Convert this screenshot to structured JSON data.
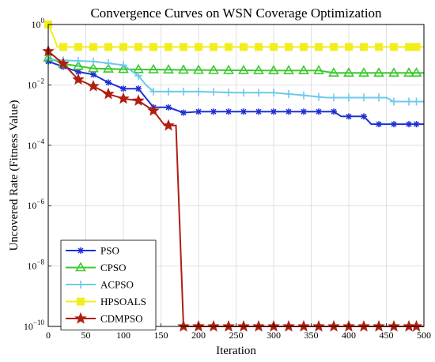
{
  "chart_data": {
    "type": "line",
    "title": "Convergence Curves on WSN Coverage Optimization",
    "xlabel": "Iteration",
    "ylabel": "Uncovered Rate (Fitness Value)",
    "xlim": [
      0,
      500
    ],
    "ylim": [
      1e-10,
      1
    ],
    "yscale": "log",
    "grid": true,
    "legend_position": "bottom-left",
    "x_ticks": [
      "0",
      "50",
      "100",
      "150",
      "200",
      "250",
      "300",
      "350",
      "400",
      "450",
      "500"
    ],
    "y_ticks": [
      {
        "value": 1e-10,
        "base": "10",
        "exp": "−10"
      },
      {
        "value": 1e-08,
        "base": "10",
        "exp": "−8"
      },
      {
        "value": 1e-06,
        "base": "10",
        "exp": "−6"
      },
      {
        "value": 0.0001,
        "base": "10",
        "exp": "−4"
      },
      {
        "value": 0.01,
        "base": "10",
        "exp": "−2"
      },
      {
        "value": 1,
        "base": "10",
        "exp": "0"
      }
    ],
    "series": [
      {
        "name": "PSO",
        "color": "#1f2fd6",
        "marker": "asterisk",
        "points": [
          [
            0,
            0.06
          ],
          [
            20,
            0.04
          ],
          [
            40,
            0.027
          ],
          [
            60,
            0.022
          ],
          [
            80,
            0.012
          ],
          [
            100,
            0.0075
          ],
          [
            120,
            0.0075
          ],
          [
            140,
            0.0018
          ],
          [
            160,
            0.0018
          ],
          [
            180,
            0.0012
          ],
          [
            200,
            0.0013
          ],
          [
            250,
            0.0013
          ],
          [
            300,
            0.0013
          ],
          [
            350,
            0.0013
          ],
          [
            380,
            0.0013
          ],
          [
            390,
            0.0009
          ],
          [
            420,
            0.0009
          ],
          [
            430,
            0.0005
          ],
          [
            500,
            0.0005
          ]
        ],
        "marker_x": [
          0,
          20,
          40,
          60,
          80,
          100,
          120,
          140,
          160,
          180,
          200,
          220,
          240,
          260,
          280,
          300,
          320,
          340,
          360,
          380,
          400,
          420,
          440,
          460,
          480,
          490
        ]
      },
      {
        "name": "CPSO",
        "color": "#3cc92e",
        "marker": "triangle",
        "points": [
          [
            0,
            0.08
          ],
          [
            20,
            0.05
          ],
          [
            40,
            0.042
          ],
          [
            60,
            0.035
          ],
          [
            100,
            0.033
          ],
          [
            200,
            0.031
          ],
          [
            300,
            0.03
          ],
          [
            360,
            0.03
          ],
          [
            380,
            0.025
          ],
          [
            500,
            0.025
          ]
        ],
        "marker_x": [
          0,
          20,
          40,
          60,
          80,
          100,
          120,
          140,
          160,
          180,
          200,
          220,
          240,
          260,
          280,
          300,
          320,
          340,
          360,
          380,
          400,
          420,
          440,
          460,
          480,
          490
        ]
      },
      {
        "name": "ACPSO",
        "color": "#6ec8ee",
        "marker": "plus",
        "points": [
          [
            0,
            0.07
          ],
          [
            20,
            0.065
          ],
          [
            60,
            0.06
          ],
          [
            100,
            0.045
          ],
          [
            120,
            0.02
          ],
          [
            130,
            0.01
          ],
          [
            140,
            0.006
          ],
          [
            200,
            0.006
          ],
          [
            250,
            0.0055
          ],
          [
            300,
            0.0055
          ],
          [
            340,
            0.0045
          ],
          [
            370,
            0.0038
          ],
          [
            450,
            0.0038
          ],
          [
            460,
            0.0028
          ],
          [
            500,
            0.0028
          ]
        ],
        "marker_x": [
          0,
          20,
          40,
          60,
          80,
          100,
          120,
          140,
          160,
          180,
          200,
          220,
          240,
          260,
          280,
          300,
          320,
          340,
          360,
          380,
          400,
          420,
          440,
          460,
          480,
          490
        ]
      },
      {
        "name": "HPSOALS",
        "color": "#f2ee1c",
        "marker": "square",
        "points": [
          [
            0,
            1
          ],
          [
            8,
            0.35
          ],
          [
            12,
            0.18
          ],
          [
            500,
            0.18
          ]
        ],
        "marker_x": [
          0,
          20,
          40,
          60,
          80,
          100,
          120,
          140,
          160,
          180,
          200,
          220,
          240,
          260,
          280,
          300,
          320,
          340,
          360,
          380,
          400,
          420,
          440,
          460,
          480,
          490
        ]
      },
      {
        "name": "CDMPSO",
        "color": "#b01e10",
        "marker": "star",
        "points": [
          [
            0,
            0.13
          ],
          [
            20,
            0.05
          ],
          [
            40,
            0.015
          ],
          [
            60,
            0.009
          ],
          [
            80,
            0.005
          ],
          [
            100,
            0.0035
          ],
          [
            120,
            0.003
          ],
          [
            140,
            0.0014
          ],
          [
            155,
            0.00045
          ],
          [
            170,
            0.00045
          ],
          [
            180,
            1e-10
          ],
          [
            500,
            1e-10
          ]
        ],
        "marker_x": [
          0,
          20,
          40,
          60,
          80,
          100,
          120,
          140,
          160,
          180,
          200,
          220,
          240,
          260,
          280,
          300,
          320,
          340,
          360,
          380,
          400,
          420,
          440,
          460,
          480,
          490
        ]
      }
    ]
  }
}
